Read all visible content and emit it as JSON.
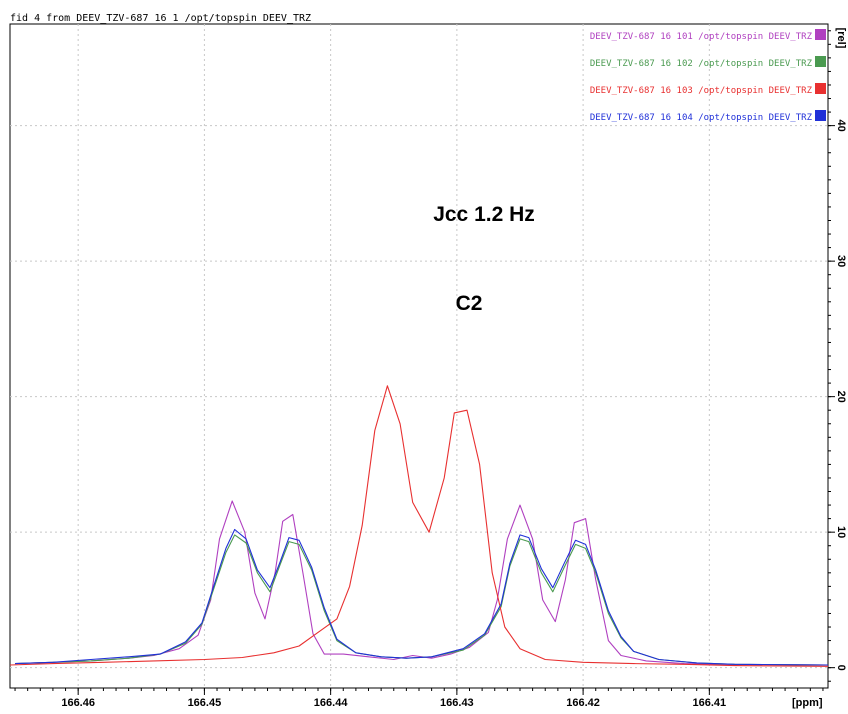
{
  "header": {
    "text": "fid 4 from DEEV_TZV-687  16  1  /opt/topspin  DEEV_TRZ"
  },
  "chart_data": {
    "type": "line",
    "x_unit_label": "[ppm]",
    "y_unit_label": "[rel]",
    "xlim": [
      166.4654,
      166.4006
    ],
    "ylim": [
      -1.5,
      47.5
    ],
    "x_ticks": [
      166.46,
      166.45,
      166.44,
      166.43,
      166.42,
      166.41
    ],
    "x_tick_labels": [
      "166.46",
      "166.45",
      "166.44",
      "166.43",
      "166.42",
      "166.41"
    ],
    "y_ticks": [
      0,
      10,
      20,
      30,
      40
    ],
    "y_tick_labels": [
      "0",
      "10",
      "20",
      "30",
      "40"
    ],
    "grid": true,
    "legend_position": "top-right",
    "annotations": [
      "Jcc 1.2 Hz",
      "C2"
    ],
    "series": [
      {
        "name": "DEEV_TZV-687  16  101  /opt/topspin  DEEV_TRZ",
        "color": "#b040c0",
        "points": [
          [
            166.465,
            0.3
          ],
          [
            166.462,
            0.4
          ],
          [
            166.459,
            0.5
          ],
          [
            166.456,
            0.7
          ],
          [
            166.454,
            0.9
          ],
          [
            166.452,
            1.4
          ],
          [
            166.4505,
            2.4
          ],
          [
            166.4495,
            5
          ],
          [
            166.4488,
            9.5
          ],
          [
            166.4478,
            12.3
          ],
          [
            166.4468,
            10
          ],
          [
            166.446,
            5.5
          ],
          [
            166.4452,
            3.6
          ],
          [
            166.4444,
            7
          ],
          [
            166.4438,
            10.8
          ],
          [
            166.443,
            11.3
          ],
          [
            166.4422,
            7
          ],
          [
            166.4414,
            2.5
          ],
          [
            166.4405,
            1
          ],
          [
            166.439,
            1
          ],
          [
            166.437,
            0.8
          ],
          [
            166.435,
            0.6
          ],
          [
            166.4335,
            0.9
          ],
          [
            166.432,
            0.7
          ],
          [
            166.4305,
            1
          ],
          [
            166.429,
            1.5
          ],
          [
            166.4275,
            2.6
          ],
          [
            166.4268,
            5
          ],
          [
            166.426,
            9.5
          ],
          [
            166.425,
            12
          ],
          [
            166.424,
            9.5
          ],
          [
            166.4232,
            5
          ],
          [
            166.4222,
            3.4
          ],
          [
            166.4214,
            6.5
          ],
          [
            166.4207,
            10.7
          ],
          [
            166.4198,
            11
          ],
          [
            166.419,
            6.5
          ],
          [
            166.418,
            2
          ],
          [
            166.417,
            0.9
          ],
          [
            166.415,
            0.5
          ],
          [
            166.412,
            0.3
          ],
          [
            166.409,
            0.25
          ],
          [
            166.4006,
            0.2
          ]
        ]
      },
      {
        "name": "DEEV_TZV-687  16  102  /opt/topspin  DEEV_TRZ",
        "color": "#4a9a50",
        "points": [
          [
            166.465,
            0.3
          ],
          [
            166.462,
            0.4
          ],
          [
            166.459,
            0.5
          ],
          [
            166.456,
            0.7
          ],
          [
            166.4535,
            1
          ],
          [
            166.4515,
            1.8
          ],
          [
            166.4502,
            3.2
          ],
          [
            166.4492,
            6
          ],
          [
            166.4483,
            8.5
          ],
          [
            166.4476,
            9.8
          ],
          [
            166.4467,
            9.2
          ],
          [
            166.4458,
            7
          ],
          [
            166.4448,
            5.6
          ],
          [
            166.444,
            7.6
          ],
          [
            166.4433,
            9.3
          ],
          [
            166.4425,
            9.1
          ],
          [
            166.4415,
            7.2
          ],
          [
            166.4405,
            4.2
          ],
          [
            166.4395,
            2
          ],
          [
            166.438,
            1.1
          ],
          [
            166.436,
            0.8
          ],
          [
            166.434,
            0.7
          ],
          [
            166.432,
            0.8
          ],
          [
            166.4295,
            1.3
          ],
          [
            166.4278,
            2.4
          ],
          [
            166.4265,
            4.5
          ],
          [
            166.4258,
            7.5
          ],
          [
            166.425,
            9.5
          ],
          [
            166.4243,
            9.3
          ],
          [
            166.4233,
            7
          ],
          [
            166.4224,
            5.6
          ],
          [
            166.4215,
            7.4
          ],
          [
            166.4206,
            9.1
          ],
          [
            166.4198,
            8.8
          ],
          [
            166.419,
            7
          ],
          [
            166.418,
            4
          ],
          [
            166.417,
            2.2
          ],
          [
            166.416,
            1.2
          ],
          [
            166.414,
            0.6
          ],
          [
            166.411,
            0.35
          ],
          [
            166.408,
            0.25
          ],
          [
            166.4006,
            0.2
          ]
        ]
      },
      {
        "name": "DEEV_TZV-687  16  103  /opt/topspin  DEEV_TRZ",
        "color": "#e83030",
        "points": [
          [
            166.4654,
            0.2
          ],
          [
            166.462,
            0.3
          ],
          [
            166.458,
            0.4
          ],
          [
            166.454,
            0.5
          ],
          [
            166.45,
            0.6
          ],
          [
            166.447,
            0.75
          ],
          [
            166.4445,
            1.1
          ],
          [
            166.4425,
            1.6
          ],
          [
            166.441,
            2.6
          ],
          [
            166.4395,
            3.6
          ],
          [
            166.4385,
            6
          ],
          [
            166.4375,
            10.5
          ],
          [
            166.4365,
            17.5
          ],
          [
            166.4355,
            20.8
          ],
          [
            166.4345,
            18
          ],
          [
            166.4335,
            12.2
          ],
          [
            166.4322,
            10
          ],
          [
            166.431,
            14
          ],
          [
            166.4302,
            18.8
          ],
          [
            166.4292,
            19
          ],
          [
            166.4282,
            15
          ],
          [
            166.4272,
            7
          ],
          [
            166.4262,
            3
          ],
          [
            166.425,
            1.4
          ],
          [
            166.423,
            0.6
          ],
          [
            166.42,
            0.4
          ],
          [
            166.416,
            0.3
          ],
          [
            166.412,
            0.25
          ],
          [
            166.408,
            0.15
          ],
          [
            166.4006,
            0.1
          ]
        ]
      },
      {
        "name": "DEEV_TZV-687  16  104  /opt/topspin  DEEV_TRZ",
        "color": "#2030d8",
        "points": [
          [
            166.465,
            0.3
          ],
          [
            166.462,
            0.4
          ],
          [
            166.459,
            0.6
          ],
          [
            166.456,
            0.8
          ],
          [
            166.4535,
            1
          ],
          [
            166.4515,
            1.9
          ],
          [
            166.4502,
            3.3
          ],
          [
            166.4492,
            6.2
          ],
          [
            166.4483,
            8.8
          ],
          [
            166.4476,
            10.2
          ],
          [
            166.4467,
            9.5
          ],
          [
            166.4458,
            7.2
          ],
          [
            166.4448,
            5.9
          ],
          [
            166.444,
            7.8
          ],
          [
            166.4433,
            9.6
          ],
          [
            166.4425,
            9.4
          ],
          [
            166.4415,
            7.4
          ],
          [
            166.4405,
            4.4
          ],
          [
            166.4395,
            2.1
          ],
          [
            166.438,
            1.1
          ],
          [
            166.436,
            0.8
          ],
          [
            166.434,
            0.7
          ],
          [
            166.432,
            0.8
          ],
          [
            166.4295,
            1.4
          ],
          [
            166.4278,
            2.5
          ],
          [
            166.4265,
            4.7
          ],
          [
            166.4258,
            7.7
          ],
          [
            166.425,
            9.8
          ],
          [
            166.4243,
            9.6
          ],
          [
            166.4233,
            7.3
          ],
          [
            166.4224,
            5.9
          ],
          [
            166.4215,
            7.7
          ],
          [
            166.4206,
            9.4
          ],
          [
            166.4198,
            9.1
          ],
          [
            166.419,
            7.2
          ],
          [
            166.418,
            4.2
          ],
          [
            166.417,
            2.3
          ],
          [
            166.416,
            1.2
          ],
          [
            166.414,
            0.6
          ],
          [
            166.411,
            0.35
          ],
          [
            166.408,
            0.25
          ],
          [
            166.4006,
            0.2
          ]
        ]
      }
    ]
  }
}
